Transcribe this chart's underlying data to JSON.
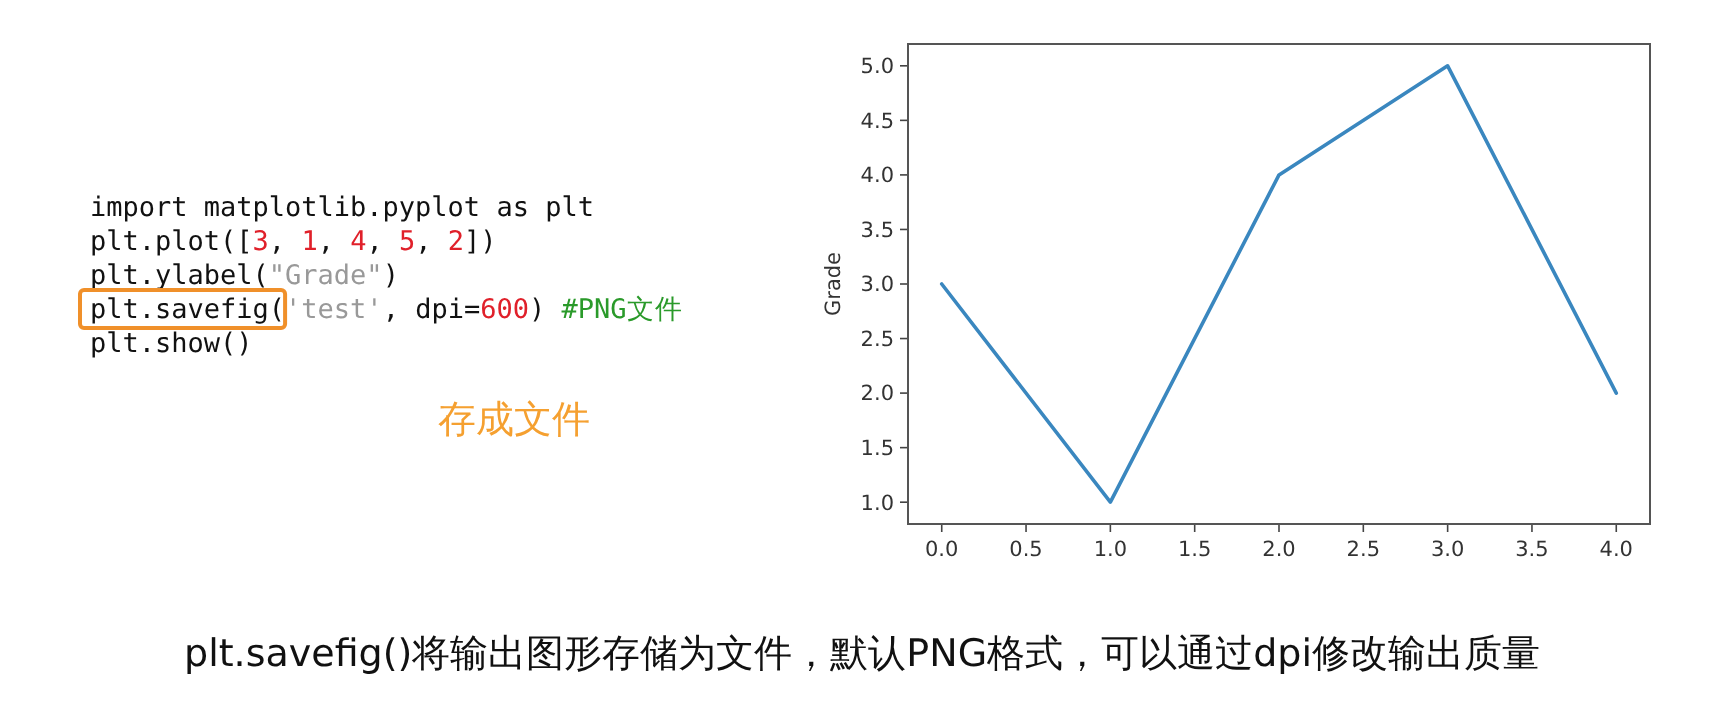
{
  "chart_data": {
    "type": "line",
    "ylabel": "Grade",
    "x": [
      0,
      1,
      2,
      3,
      4
    ],
    "values": [
      3,
      1,
      4,
      5,
      2
    ],
    "color": "#3a87bf",
    "xlim": [
      -0.2,
      4.2
    ],
    "ylim": [
      0.8,
      5.2
    ],
    "xticks": [
      {
        "value": 0,
        "label": "0.0"
      },
      {
        "value": 0.5,
        "label": "0.5"
      },
      {
        "value": 1,
        "label": "1.0"
      },
      {
        "value": 1.5,
        "label": "1.5"
      },
      {
        "value": 2,
        "label": "2.0"
      },
      {
        "value": 2.5,
        "label": "2.5"
      },
      {
        "value": 3,
        "label": "3.0"
      },
      {
        "value": 3.5,
        "label": "3.5"
      },
      {
        "value": 4,
        "label": "4.0"
      }
    ],
    "yticks": [
      {
        "value": 1,
        "label": "1.0"
      },
      {
        "value": 1.5,
        "label": "1.5"
      },
      {
        "value": 2,
        "label": "2.0"
      },
      {
        "value": 2.5,
        "label": "2.5"
      },
      {
        "value": 3,
        "label": "3.0"
      },
      {
        "value": 3.5,
        "label": "3.5"
      },
      {
        "value": 4,
        "label": "4.0"
      },
      {
        "value": 4.5,
        "label": "4.5"
      },
      {
        "value": 5,
        "label": "5.0"
      }
    ],
    "annotations": [
      "import matplotlib.pyplot as plt",
      "plt.plot([3, 1, 4, 5, 2])",
      "plt.ylabel(\"Grade\")",
      "plt.savefig('test', dpi=600)  #PNG文件",
      "plt.show()",
      "存成文件",
      "plt.savefig()将输出图形存储为文件，默认PNG格式，可以通过dpi修改输出质量"
    ]
  }
}
